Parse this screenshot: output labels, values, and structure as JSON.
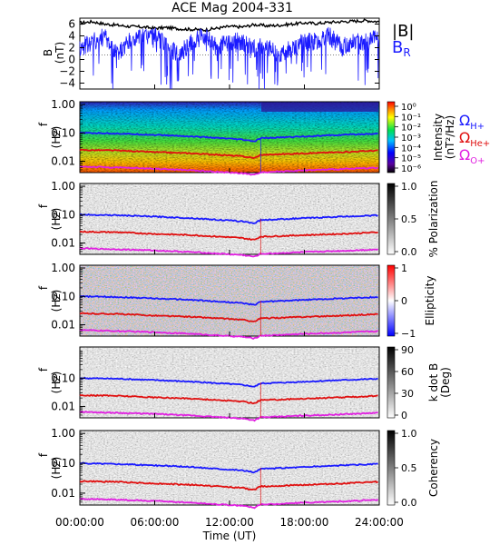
{
  "title": "ACE Mag 2004-331",
  "x_axis": {
    "label": "Time (UT)",
    "ticks": [
      "00:00:00",
      "06:00:00",
      "12:00:00",
      "18:00:00",
      "24:00:00"
    ],
    "range_hours": [
      0,
      24
    ]
  },
  "legend_top": {
    "b_total": "|B|",
    "b_r": "B",
    "b_r_sub": "R"
  },
  "gyro_legend": [
    {
      "glyph": "Ω",
      "sub": "H+",
      "color": "#1a1aff"
    },
    {
      "glyph": "Ω",
      "sub": "He+",
      "color": "#e01010"
    },
    {
      "glyph": "Ω",
      "sub": "O+",
      "color": "#e020e0"
    }
  ],
  "colors": {
    "b_total": "#000000",
    "b_r": "#1a1aff",
    "h_plus": "#1a1aff",
    "he_plus": "#e01010",
    "o_plus": "#e020e0"
  },
  "chart_data": [
    {
      "type": "line",
      "panel": "field",
      "ylabel": "B",
      "yunit": "(nT)",
      "ylim": [
        -5,
        7
      ],
      "yticks": [
        -4,
        -2,
        0,
        2,
        4,
        6
      ],
      "series": [
        {
          "name": "|B|",
          "x": [
            0,
            1,
            2,
            3,
            4,
            5,
            6,
            7,
            8,
            9,
            10,
            11,
            12,
            13,
            14,
            15,
            16,
            17,
            18,
            19,
            20,
            21,
            22,
            23,
            24
          ],
          "values": [
            6.2,
            6.4,
            6.0,
            5.8,
            5.6,
            5.5,
            5.3,
            5.4,
            5.2,
            5.1,
            5.0,
            5.3,
            5.6,
            5.5,
            5.9,
            5.7,
            5.8,
            6.0,
            6.2,
            6.1,
            6.3,
            6.4,
            6.5,
            6.6,
            6.4
          ]
        },
        {
          "name": "B_R",
          "x": [
            0,
            1,
            2,
            3,
            4,
            5,
            6,
            7,
            8,
            9,
            10,
            11,
            12,
            13,
            14,
            15,
            16,
            17,
            18,
            19,
            20,
            21,
            22,
            23,
            24
          ],
          "values": [
            2,
            3,
            4,
            1,
            3,
            4,
            4,
            2,
            1,
            3,
            4,
            2,
            3,
            3,
            2,
            2,
            1,
            2,
            3,
            3,
            4,
            2,
            3,
            3,
            4
          ]
        }
      ]
    },
    {
      "type": "heatmap",
      "panel": "intensity",
      "ylabel": "f",
      "yunit": "(Hz)",
      "yticks": [
        "1.00",
        "0.10",
        "0.01"
      ],
      "colorbar": {
        "label": "Intensity",
        "unit": "(nT²/Hz)",
        "ticks": [
          "10⁰",
          "10⁻¹",
          "10⁻²",
          "10⁻³",
          "10⁻⁴",
          "10⁻⁵",
          "10⁻⁶"
        ]
      }
    },
    {
      "type": "heatmap",
      "panel": "polarization",
      "ylabel": "f",
      "yunit": "(Hz)",
      "yticks": [
        "1.00",
        "0.10",
        "0.01"
      ],
      "colorbar": {
        "label": "% Polarization",
        "ticks": [
          "1.0",
          "0.5",
          "0.0"
        ]
      }
    },
    {
      "type": "heatmap",
      "panel": "ellipticity",
      "ylabel": "f",
      "yunit": "(Hz)",
      "yticks": [
        "1.00",
        "0.10",
        "0.01"
      ],
      "colorbar": {
        "label": "Ellipticity",
        "ticks": [
          "1",
          "0",
          "−1"
        ]
      }
    },
    {
      "type": "heatmap",
      "panel": "kdotb",
      "ylabel": "f",
      "yunit": "(Hz)",
      "yticks": [
        "0.10",
        "0.01"
      ],
      "colorbar": {
        "label": "k dot B",
        "unit": "(Deg)",
        "ticks": [
          "90",
          "60",
          "30",
          "0"
        ]
      }
    },
    {
      "type": "heatmap",
      "panel": "coherency",
      "ylabel": "f",
      "yunit": "(Hz)",
      "yticks": [
        "1.00",
        "0.10",
        "0.01"
      ],
      "colorbar": {
        "label": "Coherency",
        "ticks": [
          "1.0",
          "0.5",
          "0.0"
        ]
      }
    }
  ],
  "gyrofrequency_curves": {
    "x_hours": [
      0,
      3,
      6,
      9,
      12,
      13,
      14,
      14.5,
      15,
      18,
      21,
      24
    ],
    "h_plus_hz": [
      0.1,
      0.095,
      0.085,
      0.075,
      0.062,
      0.058,
      0.05,
      0.065,
      0.066,
      0.075,
      0.085,
      0.095
    ],
    "he_plus_hz": [
      0.025,
      0.024,
      0.021,
      0.019,
      0.016,
      0.015,
      0.013,
      0.017,
      0.017,
      0.019,
      0.021,
      0.024
    ],
    "o_plus_hz": [
      0.0065,
      0.006,
      0.0055,
      0.0048,
      0.004,
      0.0038,
      0.0033,
      0.0042,
      0.0042,
      0.0048,
      0.0053,
      0.006
    ]
  }
}
